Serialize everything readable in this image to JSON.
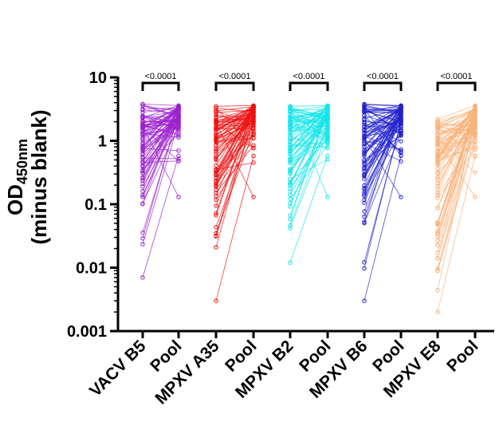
{
  "chart_data": {
    "type": "paired-scatter",
    "ylabel_main": "OD",
    "ylabel_sub": "450nm",
    "ylabel_line2": "(minus blank)",
    "yscale": "log",
    "ylim": [
      0.001,
      10
    ],
    "yticks": [
      {
        "value": 10,
        "label": "10"
      },
      {
        "value": 1,
        "label": "1"
      },
      {
        "value": 0.1,
        "label": "0.1"
      },
      {
        "value": 0.01,
        "label": "0.01"
      },
      {
        "value": 0.001,
        "label": "0.001"
      }
    ],
    "categories": [
      "VACV B5",
      "Pool",
      "MPXV A35",
      "Pool",
      "MPXV B2",
      "Pool",
      "MPXV B6",
      "Pool",
      "MPXV E8",
      "Pool"
    ],
    "pairs": [
      {
        "antigen": "VACV B5",
        "color": "#9b1fcf",
        "significance": "<0.0001",
        "antigen_range": [
          0.007,
          3.8
        ],
        "pool_range": [
          0.13,
          3.6
        ]
      },
      {
        "antigen": "MPXV A35",
        "color": "#ee1111",
        "significance": "<0.0001",
        "antigen_range": [
          0.003,
          3.5
        ],
        "pool_range": [
          0.13,
          3.6
        ]
      },
      {
        "antigen": "MPXV B2",
        "color": "#11e6ea",
        "significance": "<0.0001",
        "antigen_range": [
          0.012,
          3.5
        ],
        "pool_range": [
          0.13,
          3.6
        ]
      },
      {
        "antigen": "MPXV B6",
        "color": "#2222cc",
        "significance": "<0.0001",
        "antigen_range": [
          0.003,
          3.8
        ],
        "pool_range": [
          0.13,
          3.6
        ]
      },
      {
        "antigen": "MPXV E8",
        "color": "#f7b27a",
        "significance": "<0.0001",
        "antigen_range": [
          0.002,
          2.2
        ],
        "pool_range": [
          0.13,
          3.6
        ]
      }
    ],
    "grid": false,
    "legend": "none"
  }
}
